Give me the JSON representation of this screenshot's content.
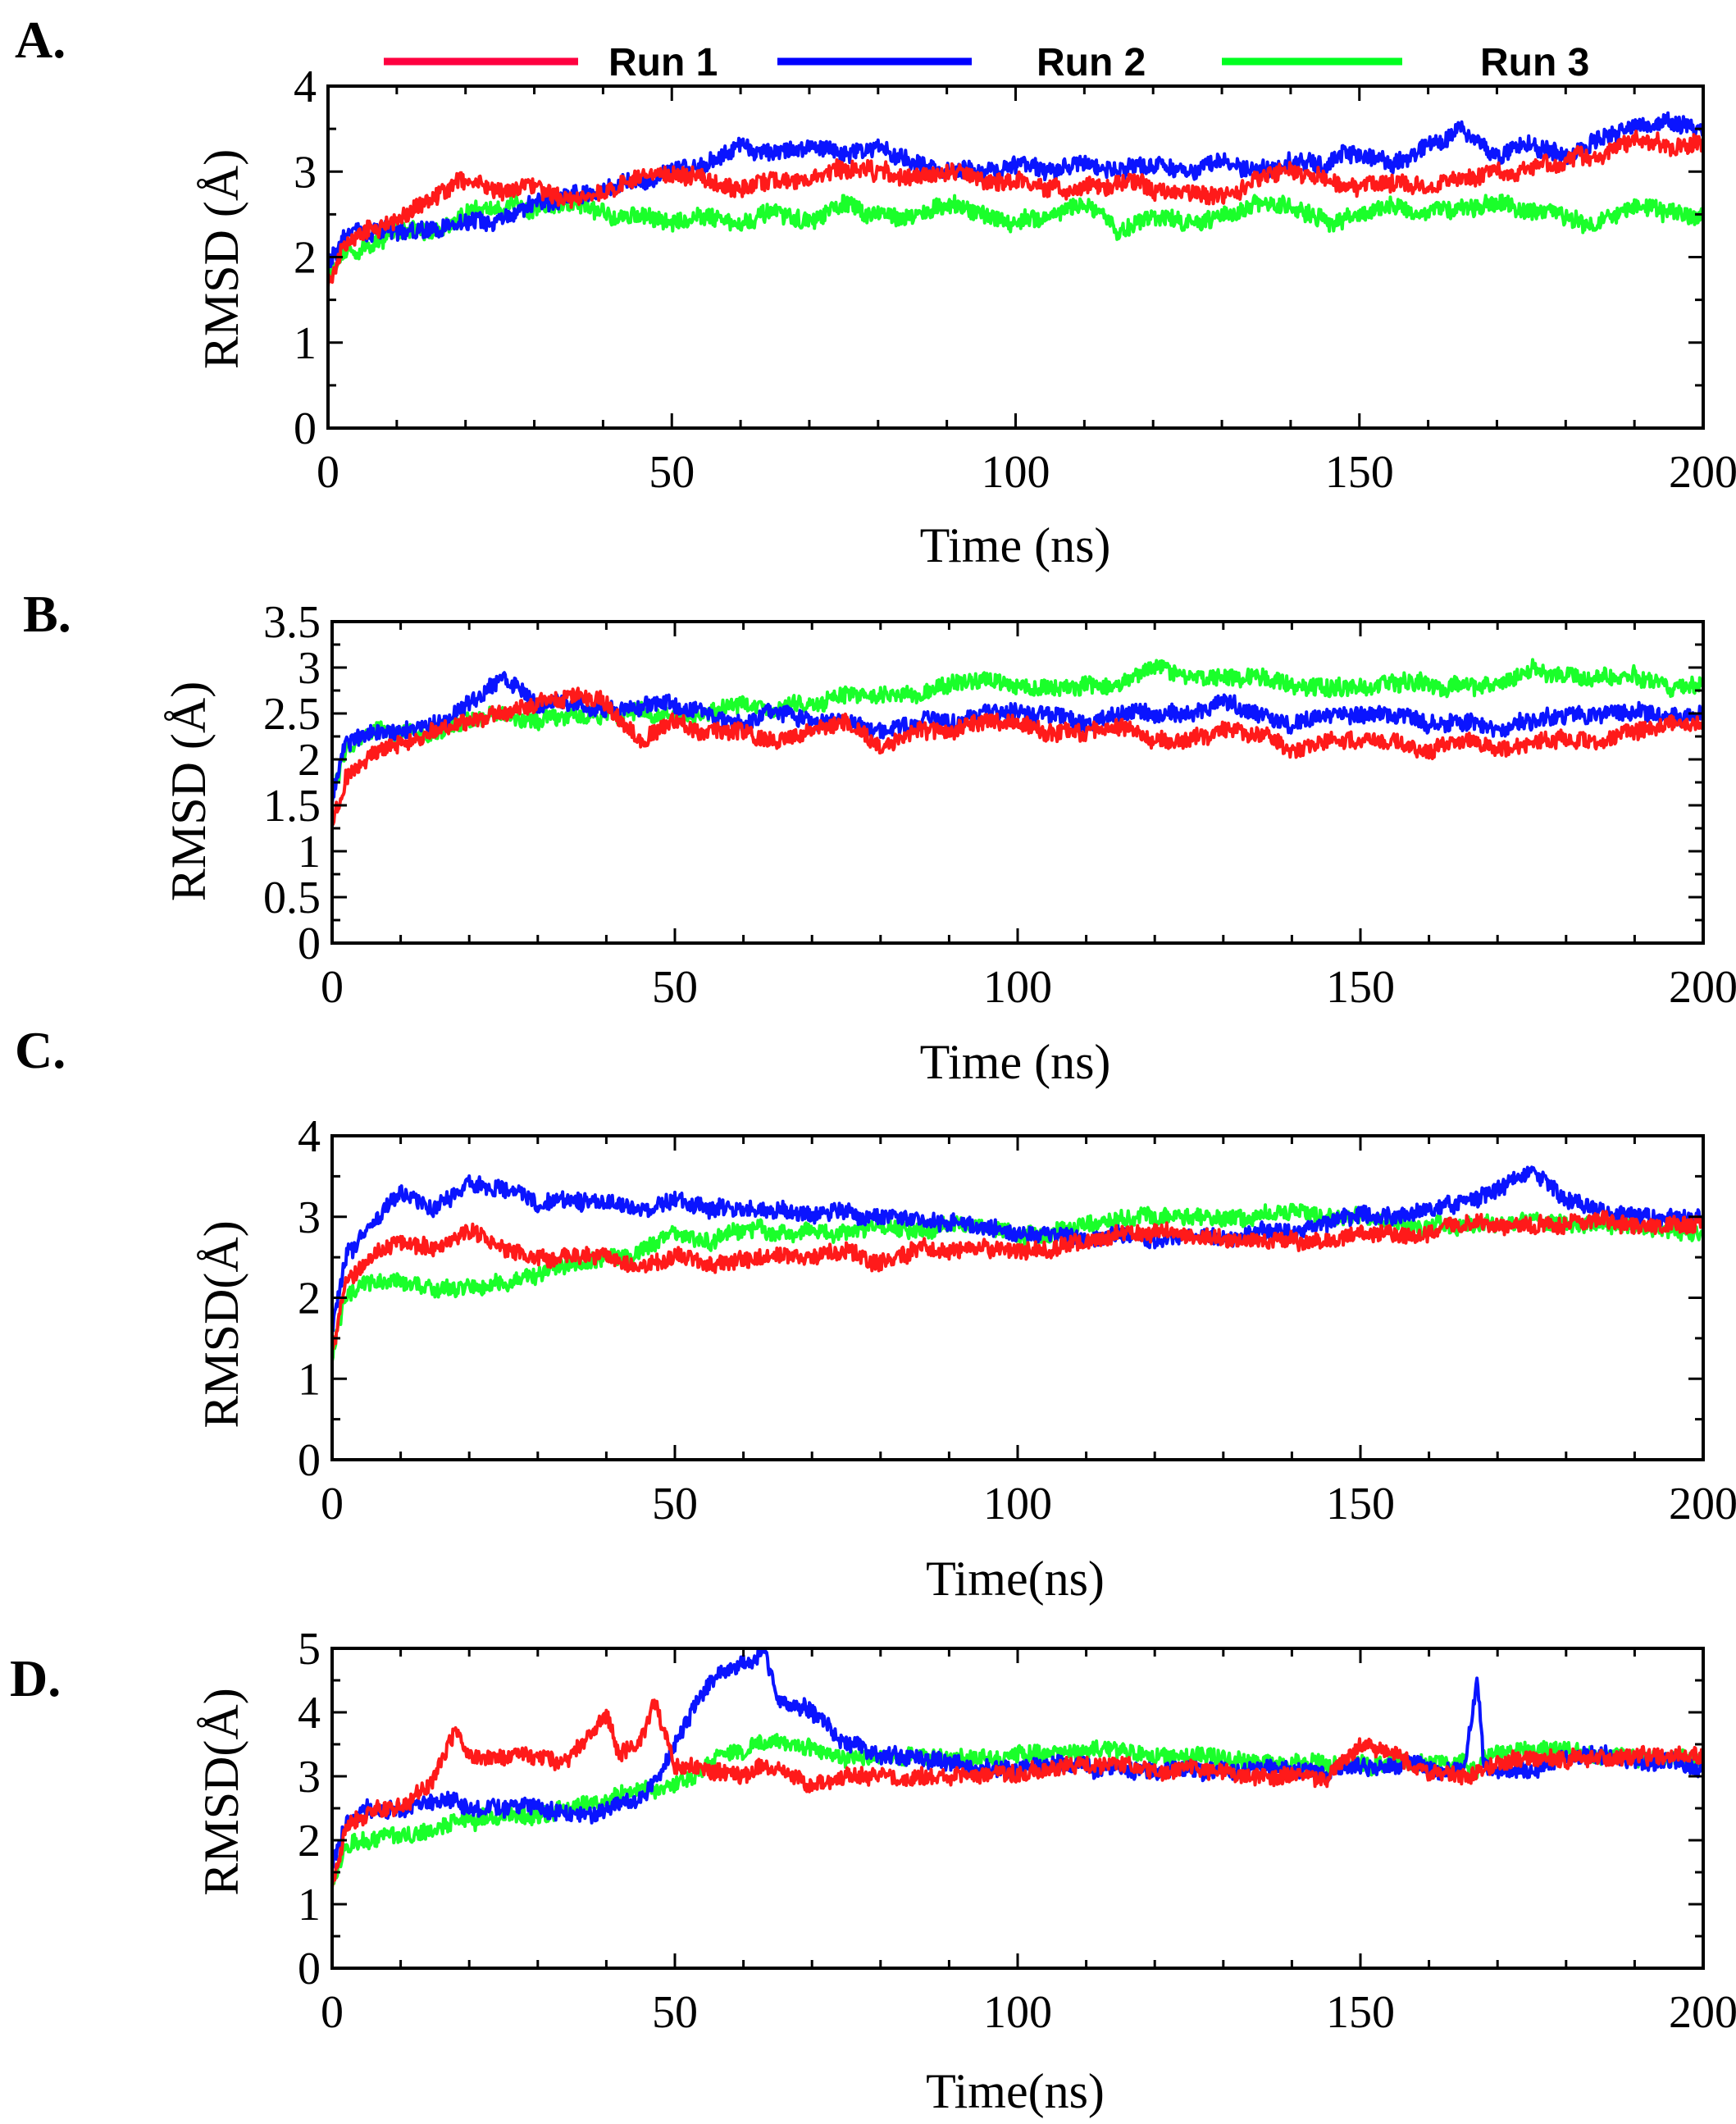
{
  "legend": {
    "items": [
      {
        "label": "Run 1",
        "color": "#ff0040"
      },
      {
        "label": "Run 2",
        "color": "#0000ff"
      },
      {
        "label": "Run 3",
        "color": "#00ff20"
      }
    ]
  },
  "series_colors": {
    "Run 1": "#ff1a1a",
    "Run 2": "#0a14ff",
    "Run 3": "#1aff2a"
  },
  "chart_data": [
    {
      "panel": "A.",
      "type": "line",
      "xlabel": "Time (ns)",
      "ylabel": "RMSD (Å)",
      "xlim": [
        0,
        200
      ],
      "ylim": [
        0,
        4
      ],
      "xticks": [
        "0",
        "50",
        "100",
        "150",
        "200"
      ],
      "yticks": [
        "0",
        "1",
        "2",
        "3",
        "4"
      ],
      "x": [
        0,
        2,
        5,
        10,
        15,
        20,
        25,
        30,
        35,
        40,
        45,
        50,
        55,
        60,
        65,
        70,
        75,
        80,
        85,
        90,
        95,
        100,
        105,
        110,
        115,
        120,
        125,
        130,
        135,
        140,
        145,
        150,
        155,
        160,
        165,
        170,
        175,
        180,
        185,
        190,
        195,
        200
      ],
      "series": [
        {
          "name": "Run 1",
          "values": [
            1.7,
            2.1,
            2.3,
            2.4,
            2.7,
            2.9,
            2.8,
            2.8,
            2.7,
            2.8,
            2.9,
            3.0,
            2.9,
            2.8,
            2.9,
            2.9,
            3.0,
            3.0,
            2.9,
            3.0,
            2.9,
            2.9,
            2.8,
            2.8,
            2.9,
            2.8,
            2.8,
            2.7,
            2.9,
            3.0,
            2.9,
            2.8,
            2.9,
            2.8,
            2.9,
            3.0,
            3.0,
            3.1,
            3.2,
            3.4,
            3.3,
            3.3
          ]
        },
        {
          "name": "Run 2",
          "values": [
            1.9,
            2.2,
            2.3,
            2.3,
            2.3,
            2.4,
            2.4,
            2.6,
            2.7,
            2.8,
            2.9,
            3.0,
            3.1,
            3.3,
            3.2,
            3.3,
            3.2,
            3.3,
            3.1,
            3.0,
            3.0,
            3.1,
            3.0,
            3.1,
            3.0,
            3.1,
            3.0,
            3.1,
            3.0,
            3.1,
            3.1,
            3.2,
            3.1,
            3.3,
            3.5,
            3.2,
            3.3,
            3.2,
            3.4,
            3.5,
            3.6,
            3.5
          ]
        },
        {
          "name": "Run 3",
          "values": [
            1.8,
            2.0,
            2.1,
            2.3,
            2.3,
            2.5,
            2.6,
            2.6,
            2.6,
            2.5,
            2.5,
            2.4,
            2.5,
            2.4,
            2.5,
            2.4,
            2.6,
            2.5,
            2.5,
            2.6,
            2.5,
            2.4,
            2.5,
            2.6,
            2.3,
            2.5,
            2.4,
            2.5,
            2.6,
            2.6,
            2.4,
            2.5,
            2.6,
            2.5,
            2.6,
            2.6,
            2.5,
            2.5,
            2.4,
            2.6,
            2.5,
            2.5
          ]
        }
      ]
    },
    {
      "panel": "B.",
      "type": "line",
      "xlabel": "Time (ns)",
      "ylabel": "RMSD (Å)",
      "xlim": [
        0,
        200
      ],
      "ylim": [
        0,
        3.5
      ],
      "xticks": [
        "0",
        "50",
        "100",
        "150",
        "200"
      ],
      "yticks": [
        "0",
        "0.5",
        "1",
        "1.5",
        "2",
        "2.5",
        "3",
        "3.5"
      ],
      "x": [
        0,
        2,
        5,
        10,
        15,
        20,
        25,
        30,
        35,
        40,
        45,
        50,
        55,
        60,
        65,
        70,
        75,
        80,
        85,
        90,
        95,
        100,
        105,
        110,
        115,
        120,
        125,
        130,
        135,
        140,
        145,
        150,
        155,
        160,
        165,
        170,
        175,
        180,
        185,
        190,
        195,
        200
      ],
      "series": [
        {
          "name": "Run 1",
          "values": [
            1.3,
            1.8,
            2.0,
            2.2,
            2.3,
            2.4,
            2.5,
            2.6,
            2.7,
            2.6,
            2.2,
            2.4,
            2.3,
            2.3,
            2.2,
            2.3,
            2.4,
            2.1,
            2.3,
            2.3,
            2.4,
            2.4,
            2.3,
            2.3,
            2.4,
            2.2,
            2.2,
            2.3,
            2.3,
            2.1,
            2.2,
            2.2,
            2.2,
            2.1,
            2.2,
            2.1,
            2.2,
            2.2,
            2.2,
            2.3,
            2.4,
            2.4
          ]
        },
        {
          "name": "Run 2",
          "values": [
            1.6,
            2.2,
            2.3,
            2.3,
            2.4,
            2.6,
            2.9,
            2.6,
            2.6,
            2.5,
            2.6,
            2.6,
            2.5,
            2.4,
            2.5,
            2.4,
            2.4,
            2.3,
            2.4,
            2.4,
            2.5,
            2.5,
            2.5,
            2.4,
            2.5,
            2.5,
            2.5,
            2.6,
            2.5,
            2.4,
            2.5,
            2.5,
            2.5,
            2.4,
            2.4,
            2.3,
            2.4,
            2.5,
            2.5,
            2.5,
            2.5,
            2.5
          ]
        },
        {
          "name": "Run 3",
          "values": [
            1.6,
            2.1,
            2.3,
            2.3,
            2.3,
            2.4,
            2.5,
            2.4,
            2.5,
            2.5,
            2.5,
            2.5,
            2.5,
            2.6,
            2.6,
            2.6,
            2.7,
            2.7,
            2.7,
            2.8,
            2.9,
            2.8,
            2.8,
            2.8,
            2.8,
            3.0,
            2.9,
            2.9,
            2.9,
            2.8,
            2.8,
            2.8,
            2.8,
            2.8,
            2.8,
            2.8,
            3.0,
            2.9,
            2.9,
            2.9,
            2.8,
            2.8
          ]
        }
      ]
    },
    {
      "panel": "C.",
      "type": "line",
      "xlabel": "Time(ns)",
      "ylabel": "RMSD(Å)",
      "xlim": [
        0,
        200
      ],
      "ylim": [
        0,
        4
      ],
      "xticks": [
        "0",
        "50",
        "100",
        "150",
        "200"
      ],
      "yticks": [
        "0",
        "1",
        "2",
        "3",
        "4"
      ],
      "x": [
        0,
        2,
        5,
        10,
        15,
        20,
        25,
        30,
        35,
        40,
        45,
        50,
        55,
        60,
        65,
        70,
        75,
        80,
        85,
        90,
        95,
        100,
        105,
        110,
        115,
        120,
        125,
        130,
        135,
        140,
        145,
        150,
        155,
        160,
        165,
        170,
        175,
        180,
        185,
        190,
        195,
        200
      ],
      "series": [
        {
          "name": "Run 1",
          "values": [
            1.3,
            2.2,
            2.5,
            2.7,
            2.6,
            2.8,
            2.6,
            2.5,
            2.5,
            2.5,
            2.4,
            2.5,
            2.4,
            2.5,
            2.5,
            2.5,
            2.6,
            2.4,
            2.6,
            2.6,
            2.6,
            2.6,
            2.6,
            2.7,
            2.8,
            2.8,
            2.8,
            2.7,
            2.7,
            2.7,
            2.7,
            2.8,
            2.8,
            2.8,
            2.9,
            2.9,
            2.9,
            2.9,
            3.0,
            2.9,
            2.9,
            2.9
          ]
        },
        {
          "name": "Run 2",
          "values": [
            1.6,
            2.5,
            2.8,
            3.3,
            3.1,
            3.4,
            3.3,
            3.2,
            3.2,
            3.2,
            3.1,
            3.2,
            3.1,
            3.1,
            3.1,
            3.0,
            3.1,
            3.0,
            3.0,
            2.9,
            2.9,
            2.8,
            2.8,
            2.7,
            2.8,
            2.7,
            2.8,
            2.7,
            2.8,
            2.8,
            2.9,
            3.0,
            3.0,
            3.1,
            3.2,
            3.3,
            3.6,
            3.2,
            3.1,
            3.0,
            3.0,
            3.0
          ]
        },
        {
          "name": "Run 3",
          "values": [
            1.3,
            2.0,
            2.2,
            2.2,
            2.1,
            2.1,
            2.2,
            2.3,
            2.4,
            2.5,
            2.6,
            2.8,
            2.7,
            2.8,
            2.8,
            2.8,
            2.8,
            2.9,
            2.8,
            2.9,
            2.9,
            2.8,
            2.8,
            2.9,
            3.0,
            3.0,
            3.0,
            3.0,
            3.0,
            3.1,
            3.0,
            3.0,
            2.9,
            2.9,
            2.9,
            2.9,
            3.0,
            2.9,
            2.9,
            2.9,
            2.8,
            2.8
          ]
        }
      ]
    },
    {
      "panel": "D.",
      "type": "line",
      "xlabel": "Time(ns)",
      "ylabel": "RMSD(Å)",
      "xlim": [
        0,
        200
      ],
      "ylim": [
        0,
        5
      ],
      "xticks": [
        "0",
        "50",
        "100",
        "150",
        "200"
      ],
      "yticks": [
        "0",
        "1",
        "2",
        "3",
        "4",
        "5"
      ],
      "x": [
        0,
        2,
        5,
        10,
        15,
        18,
        20,
        25,
        30,
        35,
        38,
        40,
        42,
        45,
        47,
        50,
        55,
        60,
        63,
        65,
        70,
        75,
        80,
        85,
        90,
        95,
        100,
        105,
        110,
        115,
        120,
        125,
        130,
        135,
        140,
        145,
        150,
        155,
        160,
        165,
        167,
        168,
        170,
        175,
        180,
        185,
        190,
        195,
        200
      ],
      "series": [
        {
          "name": "Run 1",
          "values": [
            1.2,
            2.2,
            2.4,
            2.5,
            3.0,
            3.7,
            3.3,
            3.3,
            3.3,
            3.3,
            3.7,
            4.0,
            3.3,
            3.5,
            4.2,
            3.2,
            3.1,
            3.0,
            3.2,
            3.1,
            2.9,
            3.0,
            3.0,
            3.0,
            3.0,
            3.0,
            3.0,
            3.1,
            3.2,
            3.2,
            3.1,
            3.1,
            3.1,
            3.0,
            3.0,
            3.0,
            3.5,
            3.4,
            3.0,
            3.0,
            3.1,
            3.1,
            3.2,
            3.3,
            3.3,
            3.3,
            3.3,
            3.3,
            3.3
          ]
        },
        {
          "name": "Run 2",
          "values": [
            1.6,
            2.3,
            2.5,
            2.5,
            2.6,
            2.6,
            2.5,
            2.5,
            2.5,
            2.4,
            2.4,
            2.5,
            2.6,
            2.7,
            2.9,
            3.5,
            4.5,
            4.8,
            5.0,
            4.2,
            4.0,
            3.5,
            3.3,
            3.3,
            3.2,
            3.1,
            3.1,
            3.2,
            3.2,
            3.1,
            3.1,
            3.1,
            3.1,
            3.1,
            3.1,
            3.1,
            3.2,
            3.2,
            3.1,
            3.1,
            4.5,
            3.2,
            3.1,
            3.1,
            3.3,
            3.3,
            3.2,
            3.2,
            3.1
          ]
        },
        {
          "name": "Run 3",
          "values": [
            1.3,
            1.9,
            2.0,
            2.1,
            2.2,
            2.3,
            2.3,
            2.4,
            2.4,
            2.5,
            2.6,
            2.6,
            2.7,
            2.8,
            2.8,
            2.9,
            3.2,
            3.4,
            3.5,
            3.6,
            3.4,
            3.3,
            3.3,
            3.3,
            3.3,
            3.3,
            3.3,
            3.4,
            3.4,
            3.4,
            3.3,
            3.3,
            3.3,
            3.2,
            3.2,
            3.2,
            3.2,
            3.2,
            3.2,
            3.2,
            3.1,
            3.3,
            3.4,
            3.4,
            3.4,
            3.3,
            3.3,
            3.3,
            3.3
          ]
        }
      ]
    }
  ]
}
